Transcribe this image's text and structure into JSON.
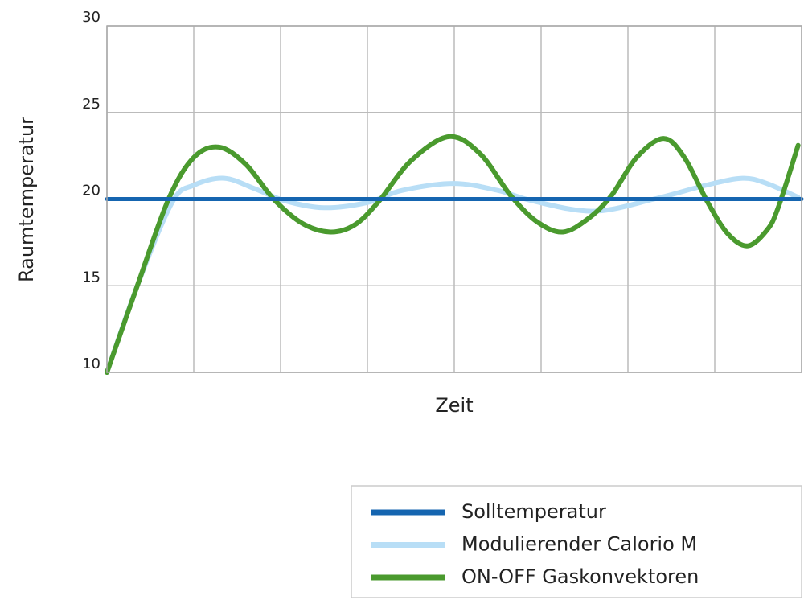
{
  "chart_data": {
    "type": "line",
    "xlabel": "Zeit",
    "ylabel": "Raumtemperatur",
    "xlim": [
      0,
      8
    ],
    "xticks": [
      0,
      1,
      2,
      3,
      4,
      5,
      6,
      7,
      8
    ],
    "ylim": [
      10,
      30
    ],
    "yticks": [
      10,
      15,
      20,
      25,
      30
    ],
    "grid": true,
    "series": [
      {
        "name": "Solltemperatur",
        "color": "#1565b0",
        "x": [
          0,
          8
        ],
        "values": [
          20,
          20
        ]
      },
      {
        "name": "Modulierender Calorio M",
        "color": "#b8def6",
        "x": [
          0,
          0.35,
          0.75,
          1.0,
          1.35,
          1.7,
          2.05,
          2.5,
          3.0,
          3.4,
          3.99,
          4.5,
          4.9,
          5.6,
          6.3,
          6.9,
          7.32,
          7.6,
          7.96
        ],
        "values": [
          10,
          15,
          19.8,
          20.8,
          21.2,
          20.6,
          19.9,
          19.5,
          19.8,
          20.5,
          20.9,
          20.5,
          19.9,
          19.3,
          20.0,
          20.8,
          21.2,
          20.9,
          20.1
        ]
      },
      {
        "name": "ON-OFF Gaskonvektoren",
        "color": "#4a9a2e",
        "x": [
          0,
          0.35,
          0.71,
          1.0,
          1.29,
          1.6,
          1.92,
          2.25,
          2.57,
          2.85,
          3.12,
          3.5,
          3.94,
          4.3,
          4.65,
          4.95,
          5.25,
          5.55,
          5.81,
          6.1,
          6.41,
          6.65,
          6.92,
          7.15,
          7.38,
          7.6,
          7.73,
          7.96
        ],
        "values": [
          10,
          15,
          20,
          22.4,
          23.0,
          22.0,
          20,
          18.6,
          18.1,
          18.5,
          19.8,
          22.2,
          23.6,
          22.6,
          20.2,
          18.7,
          18.1,
          18.9,
          20.2,
          22.4,
          23.5,
          22.4,
          19.8,
          18.0,
          17.3,
          18.2,
          19.5,
          23.1
        ]
      }
    ]
  }
}
